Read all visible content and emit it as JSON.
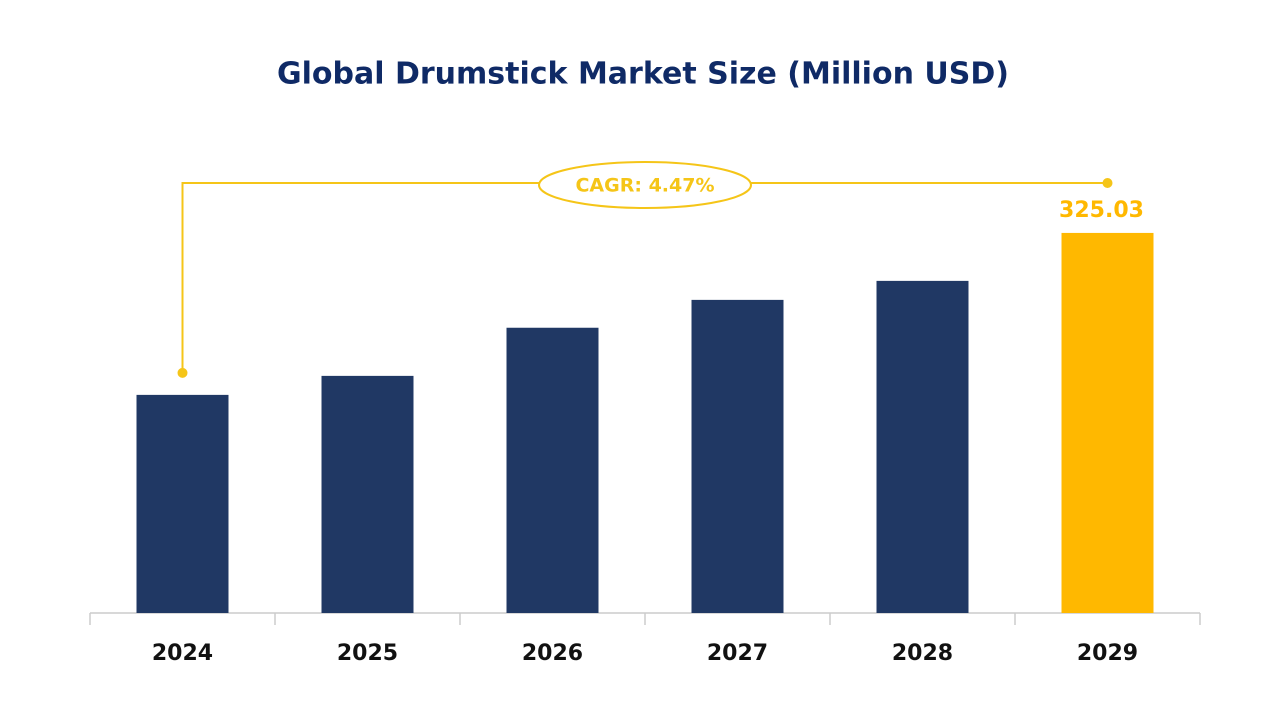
{
  "chart_data": {
    "type": "bar",
    "title": "Global Drumstick Market Size (Million USD)",
    "categories": [
      "2024",
      "2025",
      "2026",
      "2027",
      "2028",
      "2029"
    ],
    "values": [
      261.1,
      268.6,
      287.6,
      298.6,
      306.1,
      325.03
    ],
    "colors": [
      "#203864",
      "#203864",
      "#203864",
      "#203864",
      "#203864",
      "#ffb800"
    ],
    "highlight_color": "#f5c518",
    "annotation": "CAGR: 4.47%",
    "ylim": [
      175,
      340
    ]
  }
}
